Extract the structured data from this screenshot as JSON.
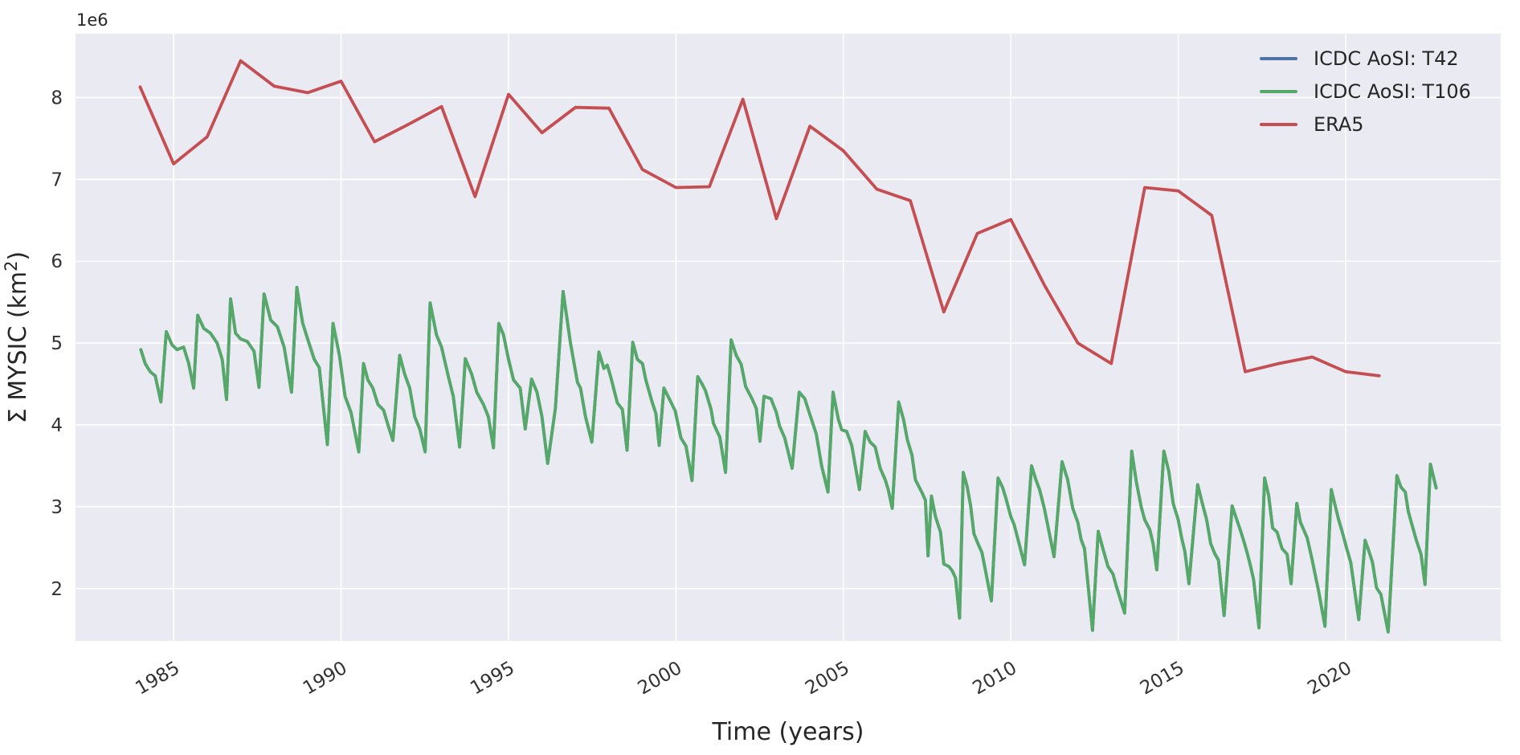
{
  "figure": {
    "background": "#ffffff",
    "plot_background": "#EAEAF2",
    "grid_color": "#ffffff",
    "text_color": "#262626",
    "xlabel": "Time (years)",
    "ylabel_main": "Σ MYSIC (km",
    "ylabel_sup": "2",
    "ylabel_close": ")",
    "offset_text": "1e6"
  },
  "legend": {
    "position": "upper-right",
    "entries": [
      {
        "label": "ICDC AoSI: T42",
        "color": "#4C72B0"
      },
      {
        "label": "ICDC AoSI: T106",
        "color": "#55A868"
      },
      {
        "label": "ERA5",
        "color": "#C44E52"
      }
    ]
  },
  "chart_data": {
    "type": "line",
    "title": "",
    "xlabel": "Time (years)",
    "ylabel": "Σ MYSIC (km2)",
    "values_scale": "1e6 km2 (y values below are in units of 1e6)",
    "grid": true,
    "axes": {
      "xlim": [
        1982.07,
        2024.63
      ],
      "ylim": [
        1.36,
        8.78
      ],
      "xticks": [
        1985,
        1990,
        1995,
        2000,
        2005,
        2010,
        2015,
        2020
      ],
      "yticks": [
        2,
        3,
        4,
        5,
        6,
        7,
        8
      ],
      "xtick_rotation_deg": -30
    },
    "series": [
      {
        "name": "ICDC AoSI: T42",
        "color": "#4C72B0",
        "visible_in_plot": false,
        "note": "completely occluded by the ICDC AoSI: T106 line in the plot; only visible in the legend",
        "same_as": "ICDC AoSI: T106",
        "points": []
      },
      {
        "name": "ICDC AoSI: T106",
        "color": "#55A868",
        "visible_in_plot": true,
        "points": [
          [
            1984.02,
            4.92
          ],
          [
            1984.15,
            4.75
          ],
          [
            1984.3,
            4.65
          ],
          [
            1984.45,
            4.6
          ],
          [
            1984.62,
            4.28
          ],
          [
            1984.78,
            5.14
          ],
          [
            1984.95,
            4.98
          ],
          [
            1985.1,
            4.92
          ],
          [
            1985.3,
            4.95
          ],
          [
            1985.45,
            4.75
          ],
          [
            1985.6,
            4.45
          ],
          [
            1985.72,
            5.34
          ],
          [
            1985.9,
            5.18
          ],
          [
            1986.1,
            5.12
          ],
          [
            1986.3,
            5.0
          ],
          [
            1986.45,
            4.8
          ],
          [
            1986.58,
            4.31
          ],
          [
            1986.7,
            5.54
          ],
          [
            1986.85,
            5.12
          ],
          [
            1987.0,
            5.05
          ],
          [
            1987.2,
            5.02
          ],
          [
            1987.4,
            4.9
          ],
          [
            1987.55,
            4.46
          ],
          [
            1987.7,
            5.6
          ],
          [
            1987.9,
            5.28
          ],
          [
            1988.1,
            5.2
          ],
          [
            1988.3,
            4.95
          ],
          [
            1988.52,
            4.4
          ],
          [
            1988.68,
            5.68
          ],
          [
            1988.85,
            5.25
          ],
          [
            1989.0,
            5.05
          ],
          [
            1989.2,
            4.8
          ],
          [
            1989.35,
            4.7
          ],
          [
            1989.59,
            3.76
          ],
          [
            1989.76,
            5.24
          ],
          [
            1989.95,
            4.85
          ],
          [
            1990.12,
            4.35
          ],
          [
            1990.3,
            4.15
          ],
          [
            1990.53,
            3.67
          ],
          [
            1990.67,
            4.75
          ],
          [
            1990.8,
            4.55
          ],
          [
            1990.95,
            4.45
          ],
          [
            1991.1,
            4.25
          ],
          [
            1991.27,
            4.18
          ],
          [
            1991.4,
            4.0
          ],
          [
            1991.55,
            3.81
          ],
          [
            1991.75,
            4.85
          ],
          [
            1991.9,
            4.62
          ],
          [
            1992.05,
            4.45
          ],
          [
            1992.2,
            4.1
          ],
          [
            1992.35,
            3.95
          ],
          [
            1992.51,
            3.67
          ],
          [
            1992.66,
            5.49
          ],
          [
            1992.85,
            5.1
          ],
          [
            1993.0,
            4.95
          ],
          [
            1993.2,
            4.6
          ],
          [
            1993.35,
            4.35
          ],
          [
            1993.54,
            3.73
          ],
          [
            1993.71,
            4.81
          ],
          [
            1993.9,
            4.62
          ],
          [
            1994.05,
            4.4
          ],
          [
            1994.25,
            4.25
          ],
          [
            1994.4,
            4.1
          ],
          [
            1994.55,
            3.72
          ],
          [
            1994.71,
            5.24
          ],
          [
            1994.85,
            5.1
          ],
          [
            1995.0,
            4.8
          ],
          [
            1995.15,
            4.55
          ],
          [
            1995.35,
            4.45
          ],
          [
            1995.5,
            3.95
          ],
          [
            1995.69,
            4.56
          ],
          [
            1995.85,
            4.4
          ],
          [
            1996.0,
            4.1
          ],
          [
            1996.17,
            3.53
          ],
          [
            1996.4,
            4.2
          ],
          [
            1996.63,
            5.63
          ],
          [
            1996.85,
            5.0
          ],
          [
            1997.06,
            4.52
          ],
          [
            1997.15,
            4.45
          ],
          [
            1997.3,
            4.1
          ],
          [
            1997.49,
            3.79
          ],
          [
            1997.7,
            4.89
          ],
          [
            1997.85,
            4.69
          ],
          [
            1997.95,
            4.73
          ],
          [
            1998.05,
            4.59
          ],
          [
            1998.25,
            4.27
          ],
          [
            1998.4,
            4.19
          ],
          [
            1998.54,
            3.69
          ],
          [
            1998.71,
            5.01
          ],
          [
            1998.85,
            4.8
          ],
          [
            1999.0,
            4.75
          ],
          [
            1999.1,
            4.55
          ],
          [
            1999.28,
            4.29
          ],
          [
            1999.4,
            4.14
          ],
          [
            1999.5,
            3.75
          ],
          [
            1999.64,
            4.45
          ],
          [
            1999.8,
            4.32
          ],
          [
            1999.98,
            4.17
          ],
          [
            2000.15,
            3.84
          ],
          [
            2000.3,
            3.74
          ],
          [
            2000.48,
            3.32
          ],
          [
            2000.65,
            4.59
          ],
          [
            2000.78,
            4.5
          ],
          [
            2000.88,
            4.42
          ],
          [
            2001.05,
            4.19
          ],
          [
            2001.12,
            4.02
          ],
          [
            2001.31,
            3.85
          ],
          [
            2001.48,
            3.42
          ],
          [
            2001.65,
            5.04
          ],
          [
            2001.8,
            4.85
          ],
          [
            2001.95,
            4.74
          ],
          [
            2002.08,
            4.47
          ],
          [
            2002.27,
            4.32
          ],
          [
            2002.4,
            4.2
          ],
          [
            2002.51,
            3.8
          ],
          [
            2002.63,
            4.35
          ],
          [
            2002.84,
            4.32
          ],
          [
            2003.0,
            4.15
          ],
          [
            2003.09,
            3.99
          ],
          [
            2003.25,
            3.84
          ],
          [
            2003.47,
            3.47
          ],
          [
            2003.68,
            4.4
          ],
          [
            2003.85,
            4.32
          ],
          [
            2003.95,
            4.19
          ],
          [
            2004.19,
            3.89
          ],
          [
            2004.35,
            3.5
          ],
          [
            2004.54,
            3.18
          ],
          [
            2004.69,
            4.4
          ],
          [
            2004.85,
            4.07
          ],
          [
            2004.95,
            3.94
          ],
          [
            2005.1,
            3.92
          ],
          [
            2005.25,
            3.75
          ],
          [
            2005.48,
            3.21
          ],
          [
            2005.65,
            3.92
          ],
          [
            2005.8,
            3.79
          ],
          [
            2005.95,
            3.73
          ],
          [
            2006.1,
            3.47
          ],
          [
            2006.25,
            3.33
          ],
          [
            2006.34,
            3.21
          ],
          [
            2006.46,
            2.98
          ],
          [
            2006.65,
            4.28
          ],
          [
            2006.8,
            4.06
          ],
          [
            2006.91,
            3.82
          ],
          [
            2007.05,
            3.63
          ],
          [
            2007.15,
            3.33
          ],
          [
            2007.34,
            3.18
          ],
          [
            2007.45,
            3.08
          ],
          [
            2007.53,
            2.4
          ],
          [
            2007.63,
            3.13
          ],
          [
            2007.75,
            2.88
          ],
          [
            2007.9,
            2.69
          ],
          [
            2008.0,
            2.3
          ],
          [
            2008.15,
            2.27
          ],
          [
            2008.25,
            2.22
          ],
          [
            2008.35,
            2.13
          ],
          [
            2008.47,
            1.64
          ],
          [
            2008.58,
            3.42
          ],
          [
            2008.7,
            3.24
          ],
          [
            2008.8,
            3.01
          ],
          [
            2008.9,
            2.67
          ],
          [
            2009.02,
            2.55
          ],
          [
            2009.14,
            2.44
          ],
          [
            2009.42,
            1.85
          ],
          [
            2009.62,
            3.35
          ],
          [
            2009.75,
            3.24
          ],
          [
            2009.85,
            3.11
          ],
          [
            2010.0,
            2.88
          ],
          [
            2010.1,
            2.78
          ],
          [
            2010.41,
            2.29
          ],
          [
            2010.62,
            3.5
          ],
          [
            2010.75,
            3.33
          ],
          [
            2010.86,
            3.21
          ],
          [
            2011.0,
            2.98
          ],
          [
            2011.1,
            2.78
          ],
          [
            2011.29,
            2.39
          ],
          [
            2011.53,
            3.55
          ],
          [
            2011.7,
            3.33
          ],
          [
            2011.85,
            2.98
          ],
          [
            2012.0,
            2.81
          ],
          [
            2012.1,
            2.6
          ],
          [
            2012.2,
            2.49
          ],
          [
            2012.44,
            1.49
          ],
          [
            2012.61,
            2.7
          ],
          [
            2012.75,
            2.49
          ],
          [
            2012.9,
            2.27
          ],
          [
            2013.05,
            2.18
          ],
          [
            2013.15,
            2.03
          ],
          [
            2013.4,
            1.7
          ],
          [
            2013.61,
            3.68
          ],
          [
            2013.75,
            3.3
          ],
          [
            2013.9,
            2.99
          ],
          [
            2014.0,
            2.84
          ],
          [
            2014.15,
            2.72
          ],
          [
            2014.25,
            2.55
          ],
          [
            2014.36,
            2.23
          ],
          [
            2014.57,
            3.68
          ],
          [
            2014.72,
            3.43
          ],
          [
            2014.85,
            3.04
          ],
          [
            2015.0,
            2.84
          ],
          [
            2015.1,
            2.62
          ],
          [
            2015.2,
            2.45
          ],
          [
            2015.32,
            2.06
          ],
          [
            2015.58,
            3.27
          ],
          [
            2015.72,
            3.04
          ],
          [
            2015.85,
            2.84
          ],
          [
            2015.97,
            2.55
          ],
          [
            2016.1,
            2.42
          ],
          [
            2016.2,
            2.35
          ],
          [
            2016.37,
            1.67
          ],
          [
            2016.61,
            3.01
          ],
          [
            2016.75,
            2.84
          ],
          [
            2016.85,
            2.72
          ],
          [
            2016.95,
            2.59
          ],
          [
            2017.05,
            2.45
          ],
          [
            2017.15,
            2.29
          ],
          [
            2017.25,
            2.11
          ],
          [
            2017.41,
            1.52
          ],
          [
            2017.58,
            3.35
          ],
          [
            2017.7,
            3.14
          ],
          [
            2017.82,
            2.74
          ],
          [
            2017.95,
            2.69
          ],
          [
            2018.1,
            2.49
          ],
          [
            2018.25,
            2.42
          ],
          [
            2018.37,
            2.06
          ],
          [
            2018.54,
            3.04
          ],
          [
            2018.65,
            2.81
          ],
          [
            2018.85,
            2.62
          ],
          [
            2019.0,
            2.35
          ],
          [
            2019.2,
            1.95
          ],
          [
            2019.38,
            1.54
          ],
          [
            2019.57,
            3.21
          ],
          [
            2019.67,
            3.04
          ],
          [
            2019.79,
            2.84
          ],
          [
            2019.9,
            2.69
          ],
          [
            2020.03,
            2.49
          ],
          [
            2020.15,
            2.32
          ],
          [
            2020.39,
            1.62
          ],
          [
            2020.58,
            2.59
          ],
          [
            2020.7,
            2.45
          ],
          [
            2020.8,
            2.32
          ],
          [
            2020.92,
            2.01
          ],
          [
            2021.05,
            1.93
          ],
          [
            2021.27,
            1.47
          ],
          [
            2021.53,
            3.38
          ],
          [
            2021.65,
            3.24
          ],
          [
            2021.78,
            3.18
          ],
          [
            2021.87,
            2.94
          ],
          [
            2022.0,
            2.75
          ],
          [
            2022.11,
            2.59
          ],
          [
            2022.25,
            2.42
          ],
          [
            2022.37,
            2.05
          ],
          [
            2022.53,
            3.52
          ],
          [
            2022.7,
            3.23
          ]
        ]
      },
      {
        "name": "ERA5",
        "color": "#C44E52",
        "visible_in_plot": true,
        "points": [
          [
            1984,
            8.13
          ],
          [
            1985,
            7.19
          ],
          [
            1986,
            7.52
          ],
          [
            1987,
            8.45
          ],
          [
            1988,
            8.14
          ],
          [
            1989,
            8.06
          ],
          [
            1990,
            8.2
          ],
          [
            1991,
            7.46
          ],
          [
            1992,
            7.67
          ],
          [
            1993,
            7.89
          ],
          [
            1994,
            6.79
          ],
          [
            1995,
            8.04
          ],
          [
            1996,
            7.57
          ],
          [
            1997,
            7.88
          ],
          [
            1998,
            7.87
          ],
          [
            1999,
            7.12
          ],
          [
            2000,
            6.9
          ],
          [
            2001,
            6.91
          ],
          [
            2002,
            7.98
          ],
          [
            2003,
            6.52
          ],
          [
            2004,
            7.65
          ],
          [
            2005,
            7.35
          ],
          [
            2006,
            6.88
          ],
          [
            2007,
            6.74
          ],
          [
            2008,
            5.38
          ],
          [
            2009,
            6.34
          ],
          [
            2010,
            6.51
          ],
          [
            2011,
            5.71
          ],
          [
            2012,
            5.0
          ],
          [
            2013,
            4.75
          ],
          [
            2014,
            6.9
          ],
          [
            2015,
            6.86
          ],
          [
            2016,
            6.56
          ],
          [
            2017,
            4.65
          ],
          [
            2018,
            4.75
          ],
          [
            2019,
            4.83
          ],
          [
            2020,
            4.65
          ],
          [
            2021,
            4.6
          ]
        ]
      }
    ]
  }
}
